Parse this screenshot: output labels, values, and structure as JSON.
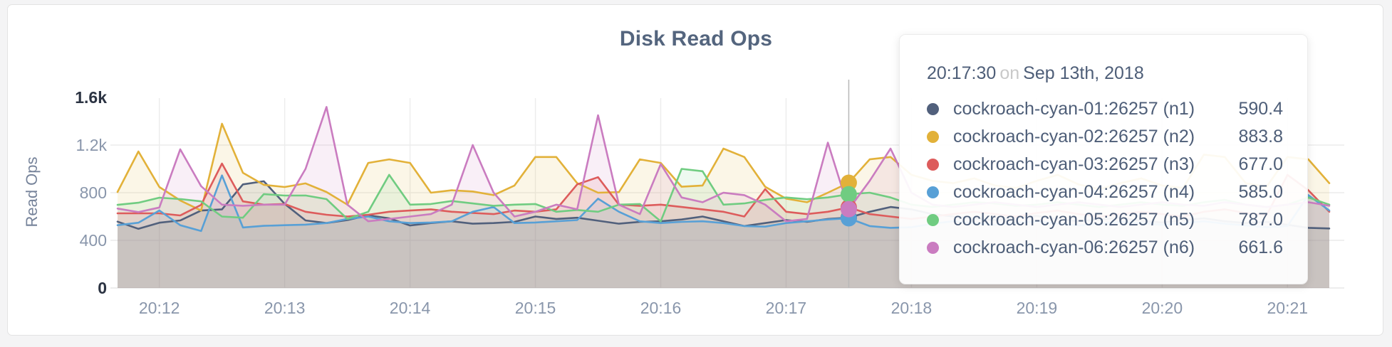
{
  "chart": {
    "title": "Disk Read Ops",
    "y_axis_label": "Read Ops"
  },
  "tooltip": {
    "time": "20:17:30",
    "connector": "on",
    "date": "Sep 13th, 2018",
    "rows": [
      {
        "name": "cockroach-cyan-01:26257 (n1)",
        "value": "590.4",
        "color": "#51607c"
      },
      {
        "name": "cockroach-cyan-02:26257 (n2)",
        "value": "883.8",
        "color": "#e2b139"
      },
      {
        "name": "cockroach-cyan-03:26257 (n3)",
        "value": "677.0",
        "color": "#dd5c5c"
      },
      {
        "name": "cockroach-cyan-04:26257 (n4)",
        "value": "585.0",
        "color": "#58a0d6"
      },
      {
        "name": "cockroach-cyan-05:26257 (n5)",
        "value": "787.0",
        "color": "#70cc81"
      },
      {
        "name": "cockroach-cyan-06:26257 (n6)",
        "value": "661.6",
        "color": "#ca7cc0"
      }
    ]
  },
  "colors": {
    "title": "#54657e",
    "axis_text": "#8996ab",
    "axis_text_emphasis": "#2b3342",
    "grid": "#ececec",
    "axis_line": "#e7e7e7",
    "hover_line": "#b8b8b8"
  },
  "chart_data": {
    "type": "line",
    "title": "Disk Read Ops",
    "xlabel": "",
    "ylabel": "Read Ops",
    "ylim": [
      0,
      1600
    ],
    "grid": true,
    "legend_position": "tooltip",
    "x_start": "20:11:40",
    "x_step_seconds": 10,
    "hover_index": 35,
    "hover_time": "20:17:30",
    "y_ticks": [
      {
        "value": 0,
        "label": "0",
        "emphasis": true,
        "gridline": false
      },
      {
        "value": 400,
        "label": "400",
        "emphasis": false,
        "gridline": true
      },
      {
        "value": 800,
        "label": "800",
        "emphasis": false,
        "gridline": true
      },
      {
        "value": 1200,
        "label": "1.2k",
        "emphasis": false,
        "gridline": true
      },
      {
        "value": 1600,
        "label": "1.6k",
        "emphasis": true,
        "gridline": false
      }
    ],
    "x_ticks": [
      {
        "label": "20:12",
        "index": 2
      },
      {
        "label": "20:13",
        "index": 8
      },
      {
        "label": "20:14",
        "index": 14
      },
      {
        "label": "20:15",
        "index": 20
      },
      {
        "label": "20:16",
        "index": 26
      },
      {
        "label": "20:17",
        "index": 32
      },
      {
        "label": "20:18",
        "index": 38
      },
      {
        "label": "20:19",
        "index": 44
      },
      {
        "label": "20:20",
        "index": 50
      },
      {
        "label": "20:21",
        "index": 56
      }
    ],
    "series": [
      {
        "name": "cockroach-cyan-01:26257 (n1)",
        "color": "#51607c",
        "values": [
          557,
          497,
          548,
          567,
          650,
          660,
          870,
          896,
          706,
          567,
          545,
          570,
          610,
          585,
          525,
          545,
          560,
          540,
          545,
          555,
          600,
          580,
          590,
          565,
          540,
          555,
          560,
          575,
          600,
          560,
          520,
          545,
          570,
          555,
          580,
          590.4,
          640,
          680,
          660,
          620,
          600,
          585,
          570,
          590,
          605,
          580,
          560,
          575,
          590,
          565,
          550,
          570,
          585,
          560,
          545,
          555,
          530,
          505,
          500
        ]
      },
      {
        "name": "cockroach-cyan-02:26257 (n2)",
        "color": "#e2b139",
        "values": [
          806,
          1146,
          848,
          735,
          650,
          1379,
          967,
          866,
          848,
          878,
          806,
          700,
          1050,
          1080,
          1050,
          800,
          820,
          810,
          780,
          860,
          1100,
          1100,
          880,
          800,
          805,
          1080,
          1050,
          850,
          860,
          1170,
          1100,
          850,
          750,
          720,
          800,
          883.8,
          1080,
          1100,
          950,
          900,
          880,
          920,
          860,
          840,
          900,
          950,
          870,
          830,
          880,
          920,
          860,
          840,
          1120,
          1100,
          880,
          850,
          1100,
          1080,
          880
        ]
      },
      {
        "name": "cockroach-cyan-03:26257 (n3)",
        "color": "#dd5c5c",
        "values": [
          627,
          627,
          627,
          609,
          698,
          1045,
          727,
          700,
          705,
          640,
          615,
          600,
          615,
          640,
          650,
          660,
          640,
          630,
          620,
          650,
          640,
          660,
          870,
          930,
          700,
          690,
          700,
          680,
          660,
          640,
          600,
          830,
          640,
          620,
          640,
          677,
          620,
          600,
          580,
          600,
          620,
          640,
          620,
          600,
          630,
          650,
          620,
          600,
          620,
          640,
          620,
          600,
          640,
          660,
          630,
          610,
          950,
          820,
          640
        ]
      },
      {
        "name": "cockroach-cyan-04:26257 (n4)",
        "color": "#58a0d6",
        "values": [
          527,
          548,
          651,
          527,
          478,
          945,
          508,
          522,
          527,
          532,
          545,
          580,
          600,
          560,
          545,
          550,
          560,
          640,
          680,
          545,
          550,
          560,
          570,
          750,
          640,
          560,
          545,
          555,
          560,
          545,
          520,
          515,
          545,
          560,
          575,
          585,
          520,
          505,
          510,
          540,
          560,
          545,
          530,
          545,
          560,
          540,
          525,
          540,
          555,
          545,
          530,
          545,
          560,
          540,
          525,
          510,
          520,
          780,
          650
        ]
      },
      {
        "name": "cockroach-cyan-05:26257 (n5)",
        "color": "#70cc81",
        "values": [
          698,
          716,
          758,
          746,
          727,
          600,
          590,
          788,
          776,
          777,
          746,
          580,
          640,
          950,
          700,
          705,
          730,
          710,
          690,
          700,
          705,
          640,
          655,
          640,
          700,
          705,
          560,
          1000,
          980,
          700,
          710,
          740,
          760,
          745,
          760,
          787,
          800,
          760,
          700,
          680,
          700,
          720,
          710,
          690,
          700,
          720,
          700,
          680,
          700,
          720,
          700,
          690,
          720,
          740,
          700,
          680,
          700,
          760,
          700
        ]
      },
      {
        "name": "cockroach-cyan-06:26257 (n6)",
        "color": "#ca7cc0",
        "values": [
          667,
          637,
          676,
          1164,
          855,
          700,
          690,
          700,
          700,
          1000,
          1520,
          700,
          560,
          580,
          600,
          620,
          700,
          1200,
          800,
          600,
          640,
          700,
          660,
          1450,
          700,
          620,
          1040,
          760,
          720,
          800,
          780,
          700,
          560,
          580,
          1220,
          661.6,
          900,
          1170,
          800,
          700,
          680,
          700,
          720,
          700,
          680,
          700,
          720,
          700,
          680,
          700,
          720,
          700,
          690,
          720,
          700,
          680,
          700,
          720,
          690
        ]
      }
    ]
  }
}
